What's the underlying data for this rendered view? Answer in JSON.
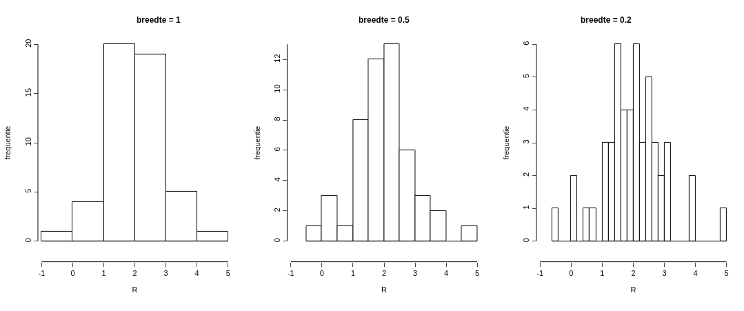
{
  "chart_data": [
    {
      "type": "histogram",
      "title": "breedte = 1",
      "xlabel": "R",
      "ylabel": "frequentie",
      "bins": [
        -1,
        0,
        1,
        2,
        3,
        4,
        5
      ],
      "values": [
        1,
        4,
        20,
        19,
        5,
        1
      ],
      "color": "#ffffff",
      "xlim": [
        -1,
        5
      ],
      "xticks": [
        -1,
        0,
        1,
        2,
        3,
        4,
        5
      ],
      "ylim": [
        0,
        20
      ],
      "yticks": [
        0,
        5,
        10,
        15,
        20
      ]
    },
    {
      "type": "histogram",
      "title": "breedte = 0.5",
      "xlabel": "R",
      "ylabel": "frequentie",
      "bins": [
        -0.5,
        0,
        0.5,
        1,
        1.5,
        2,
        2.5,
        3,
        3.5,
        4,
        4.5,
        5
      ],
      "values": [
        1,
        3,
        1,
        8,
        12,
        13,
        6,
        3,
        2,
        0,
        1
      ],
      "color": "#ffffff",
      "xlim": [
        -1,
        5
      ],
      "xticks": [
        -1,
        0,
        1,
        2,
        3,
        4,
        5
      ],
      "ylim": [
        0,
        13
      ],
      "yticks": [
        0,
        2,
        4,
        6,
        8,
        10,
        12
      ]
    },
    {
      "type": "histogram",
      "title": "breedte = 0.2",
      "xlabel": "R",
      "ylabel": "frequentie",
      "bins": [
        -0.6,
        -0.4,
        -0.2,
        0,
        0.2,
        0.4,
        0.6,
        0.8,
        1.0,
        1.2,
        1.4,
        1.6,
        1.8,
        2.0,
        2.2,
        2.4,
        2.6,
        2.8,
        3.0,
        3.2,
        3.4,
        3.6,
        3.8,
        4.0,
        4.2,
        4.4,
        4.6,
        4.8,
        5.0
      ],
      "values": [
        1,
        0,
        0,
        2,
        0,
        1,
        1,
        0,
        3,
        3,
        6,
        4,
        4,
        6,
        3,
        5,
        3,
        2,
        3,
        0,
        0,
        0,
        2,
        0,
        0,
        0,
        0,
        1
      ],
      "color": "#ffffff",
      "xlim": [
        -1,
        5
      ],
      "xticks": [
        -1,
        0,
        1,
        2,
        3,
        4,
        5
      ],
      "ylim": [
        0,
        6
      ],
      "yticks": [
        0,
        1,
        2,
        3,
        4,
        5,
        6
      ]
    }
  ]
}
